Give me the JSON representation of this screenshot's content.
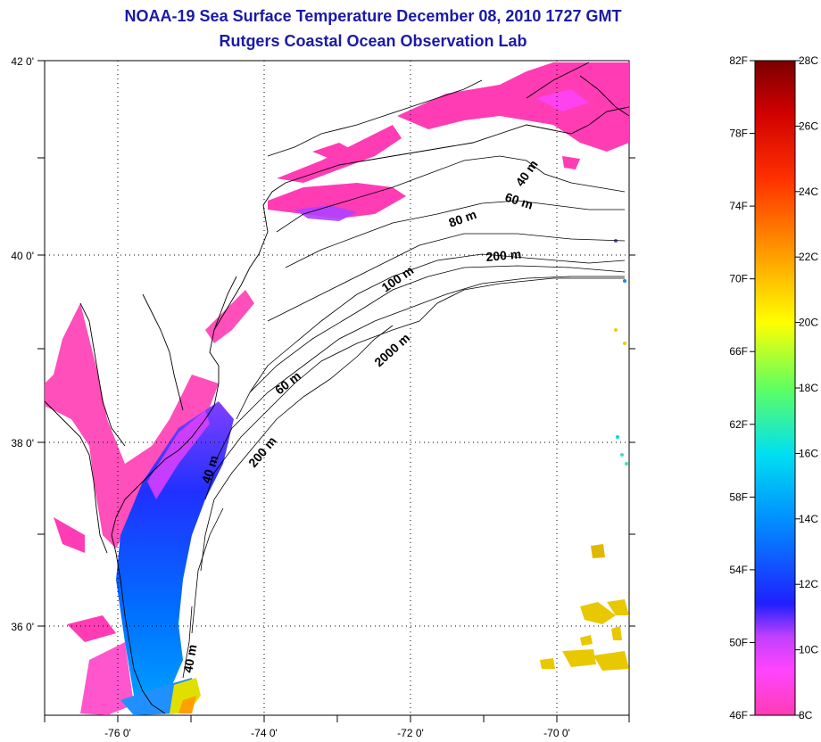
{
  "title": "NOAA-19 Sea Surface Temperature December 08, 2010 1727 GMT",
  "subtitle": "Rutgers Coastal Ocean Observation Lab",
  "map": {
    "lon_range": [
      -77,
      -69
    ],
    "lat_range": [
      35,
      42
    ],
    "lon_ticks": [
      {
        "value": -76,
        "label": "-76 0'"
      },
      {
        "value": -74,
        "label": "-74 0'"
      },
      {
        "value": -72,
        "label": "-72 0'"
      },
      {
        "value": -70,
        "label": "-70 0'"
      }
    ],
    "lat_ticks": [
      {
        "value": 42,
        "label": "42 0'"
      },
      {
        "value": 40,
        "label": "40 0'"
      },
      {
        "value": 38,
        "label": "38 0'"
      },
      {
        "value": 36,
        "label": "36 0'"
      }
    ],
    "grid": "dotted",
    "contour_labels": [
      "40 m",
      "60 m",
      "80 m",
      "200 m",
      "100 m",
      "2000 m",
      "60 m",
      "200 m",
      "40 m",
      "40 m"
    ]
  },
  "colorbar": {
    "min_c": 8,
    "max_c": 28,
    "left_labels": [
      "82F",
      "78F",
      "74F",
      "70F",
      "66F",
      "62F",
      "58F",
      "54F",
      "50F",
      "46F"
    ],
    "right_labels": [
      "28C",
      "26C",
      "24C",
      "22C",
      "20C",
      "18C",
      "16C",
      "14C",
      "12C",
      "10C",
      "8C"
    ],
    "colors": [
      "#ff3cb4",
      "#ff44ff",
      "#c040ff",
      "#7030e0",
      "#2020ff",
      "#0050ff",
      "#0090ff",
      "#00c8ff",
      "#00f0e0",
      "#40ff90",
      "#a0ff40",
      "#ffff00",
      "#ffd000",
      "#ffa000",
      "#ff6000",
      "#ff2000",
      "#e00000",
      "#a00000",
      "#800000"
    ]
  }
}
